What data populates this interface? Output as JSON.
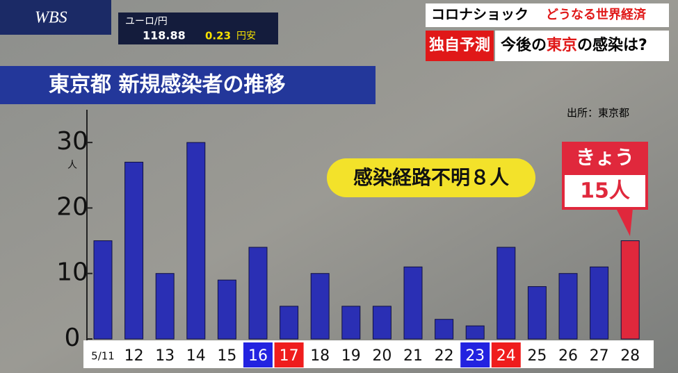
{
  "overlay": {
    "logo": "WBS",
    "fx_label": "ユーロ/円",
    "fx_rate": "118.88",
    "fx_change": "0.23",
    "fx_change_unit": "円安",
    "topic": "コロナショック",
    "topic_sub": "どうなる世界経済",
    "tag": "独自予測",
    "headline_1": "今後の",
    "headline_2": "東京",
    "headline_3": "の感染は?"
  },
  "chart_data": {
    "type": "bar",
    "title": "東京都 新規感染者の推移",
    "source": "出所：東京都",
    "y_unit": "人",
    "annotation": "感染経路不明８人",
    "callout_title": "きょう",
    "callout_value": "15人",
    "categories": [
      "5/11",
      "12",
      "13",
      "14",
      "15",
      "16",
      "17",
      "18",
      "19",
      "20",
      "21",
      "22",
      "23",
      "24",
      "25",
      "26",
      "27",
      "28"
    ],
    "values": [
      15,
      27,
      10,
      30,
      9,
      14,
      5,
      10,
      5,
      5,
      11,
      3,
      2,
      14,
      8,
      10,
      11,
      15
    ],
    "bar_colors": [
      "#2a2fb4",
      "#2a2fb4",
      "#2a2fb4",
      "#2a2fb4",
      "#2a2fb4",
      "#2a2fb4",
      "#2a2fb4",
      "#2a2fb4",
      "#2a2fb4",
      "#2a2fb4",
      "#2a2fb4",
      "#2a2fb4",
      "#2a2fb4",
      "#2a2fb4",
      "#2a2fb4",
      "#2a2fb4",
      "#2a2fb4",
      "#e0283c"
    ],
    "label_colors": [
      "#ffffff",
      "#ffffff",
      "#ffffff",
      "#ffffff",
      "#ffffff",
      "#2323e0",
      "#ef1d1d",
      "#ffffff",
      "#ffffff",
      "#ffffff",
      "#ffffff",
      "#ffffff",
      "#2323e0",
      "#ef1d1d",
      "#ffffff",
      "#ffffff",
      "#ffffff",
      "#ffffff"
    ],
    "ylim": [
      0,
      35
    ],
    "yticks": [
      0,
      10,
      20,
      30
    ]
  }
}
